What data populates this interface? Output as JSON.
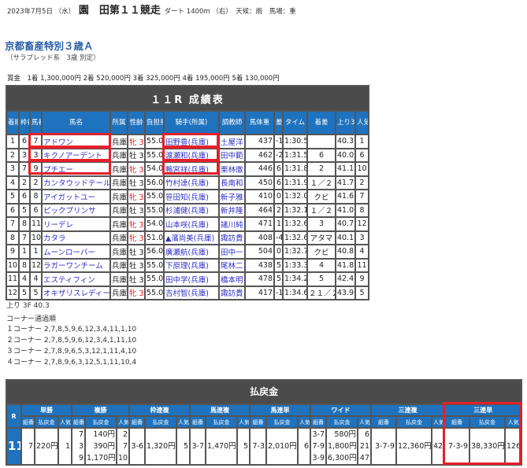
{
  "header": {
    "date": "2023年7月5日 （水）",
    "race": "園　田第１１競走",
    "course": "ダート 1400m （右）",
    "weather": "天候：雨",
    "track": "馬場：重"
  },
  "race_name": "京都畜産特別３歳Ａ",
  "race_class": "（サラブレッド系　3歳 別定）",
  "prize": "賞金　1着 1,300,000円  2着 520,000円  3着 325,000円  4着 195,000円  5着 130,000円",
  "results": {
    "title": "１１R 成績表",
    "columns": [
      "着順",
      "枠番",
      "馬番",
      "馬名",
      "所属",
      "性齢",
      "負担重量",
      "騎手(所属)",
      "調教師",
      "馬体重",
      "差",
      "タイム",
      "着差",
      "上り3F",
      "人気"
    ],
    "rows": [
      [
        "1",
        "6",
        "7",
        "アドワン",
        "兵庫",
        "牝 3",
        "55.0",
        "田野豊(兵庫)",
        "土屋洋",
        "437",
        "-1",
        "1:30.5",
        "",
        "40.3",
        "1"
      ],
      [
        "2",
        "3",
        "3",
        "キクノアーデント",
        "兵庫",
        "牡 3",
        "55.0",
        "渡瀬和(兵庫)",
        "田中範",
        "462",
        "-2",
        "1:31.5",
        "6",
        "40.0",
        "6"
      ],
      [
        "3",
        "7",
        "9",
        "プチエー",
        "兵庫",
        "牝 3",
        "54.0",
        "鴨宮祥(兵庫)",
        "栗林徹",
        "446",
        "6",
        "1:31.8",
        "2",
        "41.1",
        "10"
      ],
      [
        "4",
        "2",
        "2",
        "カンタウッドテール",
        "兵庫",
        "牡 3",
        "56.0",
        "竹村達(兵庫)",
        "長南和",
        "450",
        "6",
        "1:31.9",
        "１／２",
        "41.7",
        "2"
      ],
      [
        "5",
        "6",
        "8",
        "アイガットユー",
        "兵庫",
        "牝 3",
        "55.0",
        "笹田知(兵庫)",
        "新子雅",
        "410",
        "0",
        "1:32.0",
        "クビ",
        "41.6",
        "7"
      ],
      [
        "6",
        "5",
        "6",
        "ピックプリンサ",
        "兵庫",
        "牡 3",
        "55.0",
        "杉浦健(兵庫)",
        "新井隆",
        "464",
        "2",
        "1:32.1",
        "１／２",
        "41.0",
        "8"
      ],
      [
        "7",
        "8",
        "11",
        "リーデレ",
        "兵庫",
        "牝 3",
        "54.0",
        "山本咲(兵庫)",
        "諸川純",
        "471",
        "1",
        "1:32.6",
        "3",
        "40.7",
        "12"
      ],
      [
        "8",
        "7",
        "10",
        "カタラ",
        "兵庫",
        "牝 3",
        "51.0",
        "▲濱尚美(兵庫)",
        "諏訪貴",
        "408",
        "-4",
        "1:32.6",
        "アタマ",
        "40.1",
        "3"
      ],
      [
        "9",
        "1",
        "1",
        "ムーンローバー",
        "兵庫",
        "牡 3",
        "56.0",
        "廣瀬航(兵庫)",
        "田中一",
        "504",
        "0",
        "1:32.7",
        "クビ",
        "40.8",
        "4"
      ],
      [
        "10",
        "8",
        "12",
        "ラガーワンチーム",
        "兵庫",
        "牡 3",
        "55.0",
        "下原理(兵庫)",
        "尾林二",
        "438",
        "5",
        "1:33.3",
        "4",
        "41.8",
        "11"
      ],
      [
        "11",
        "4",
        "4",
        "エスティフィン",
        "兵庫",
        "牡 3",
        "55.0",
        "田中学(兵庫)",
        "橋本明",
        "478",
        "5",
        "1:34.2",
        "5",
        "42.4",
        "9"
      ],
      [
        "12",
        "5",
        "5",
        "オキザリスレディー",
        "兵庫",
        "牝 3",
        "55.0",
        "吉村智(兵庫)",
        "諏訪貴",
        "417",
        "-1",
        "1:34.6",
        "２１／２",
        "43.9",
        "5"
      ]
    ]
  },
  "last3f": "上り 3F 40.3",
  "corners": {
    "title": "コーナー通過順",
    "lines": [
      "１コーナー 2,7,8,5,9,6,12,3,4,11,1,10",
      "２コーナー 2,7,8,5,9,6,12,3,4,1,11,10",
      "３コーナー 2,7,8,9,6,5,3,12,1,11,4,10",
      "４コーナー 2,7,8,9,6,3,12,5,1,11,10,4"
    ]
  },
  "payout": {
    "title": "払戻金",
    "r_label": "R",
    "race_no": "11",
    "sub": [
      "組番",
      "払戻金",
      "人気"
    ],
    "groups": [
      {
        "name": "単勝",
        "nums": [
          "7"
        ],
        "pays": [
          "220円"
        ],
        "pops": [
          "1"
        ]
      },
      {
        "name": "複勝",
        "nums": [
          "7",
          "3",
          "9"
        ],
        "pays": [
          "140円",
          "390円",
          "1,170円"
        ],
        "pops": [
          "2",
          "7",
          "10"
        ]
      },
      {
        "name": "枠連複",
        "nums": [
          "3-6"
        ],
        "pays": [
          "1,320円"
        ],
        "pops": [
          "5"
        ]
      },
      {
        "name": "馬連複",
        "nums": [
          "3-7"
        ],
        "pays": [
          "1,470円"
        ],
        "pops": [
          "5"
        ]
      },
      {
        "name": "馬連単",
        "nums": [
          "7-3"
        ],
        "pays": [
          "2,010円"
        ],
        "pops": [
          "6"
        ]
      },
      {
        "name": "ワイド",
        "nums": [
          "3-7",
          "7-9",
          "3-9"
        ],
        "pays": [
          "580円",
          "1,800円",
          "6,300円"
        ],
        "pops": [
          "6",
          "21",
          "47"
        ]
      },
      {
        "name": "三連複",
        "nums": [
          "3-7-9"
        ],
        "pays": [
          "12,360円"
        ],
        "pops": [
          "42"
        ]
      },
      {
        "name": "三連単",
        "nums": [
          "7-3-9"
        ],
        "pays": [
          "38,330円"
        ],
        "pops": [
          "126"
        ]
      }
    ]
  },
  "colors": {
    "header_bg": "#4b4b4b",
    "col_header": "#1f72bd",
    "link": "#2f2fc8",
    "female": "#e02020",
    "highlight": "#e5202a"
  }
}
